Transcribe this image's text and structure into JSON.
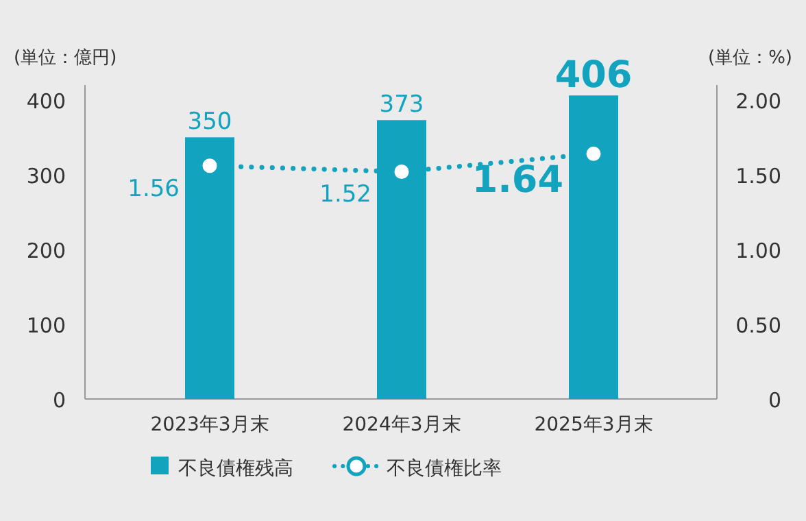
{
  "chart_data": {
    "type": "bar",
    "ylabel": "(単位：億円)",
    "y2label": "(単位：%)",
    "categories": [
      "2023年3月末",
      "2024年3月末",
      "2025年3月末"
    ],
    "series": [
      {
        "name": "不良債権残高",
        "color": "#12a3bf",
        "values": [
          350,
          373,
          406
        ]
      },
      {
        "name": "不良債権比率",
        "type": "line",
        "axis": "y2",
        "color": "#12a3bf",
        "values": [
          1.56,
          1.52,
          1.64
        ],
        "marker": "circle",
        "line_style": "dotted"
      }
    ],
    "ylim": [
      0,
      420
    ],
    "yticks": [
      0,
      100,
      200,
      300,
      400
    ],
    "y2lim": [
      0,
      2.1
    ],
    "y2ticks": [
      {
        "value": 0,
        "label": "0"
      },
      {
        "value": 0.5,
        "label": "0.50"
      },
      {
        "value": 1,
        "label": "1.00"
      },
      {
        "value": 1.5,
        "label": "1.50"
      },
      {
        "value": 2,
        "label": "2.00"
      }
    ],
    "data_labels": true,
    "legend": "bottom",
    "grid": false
  }
}
